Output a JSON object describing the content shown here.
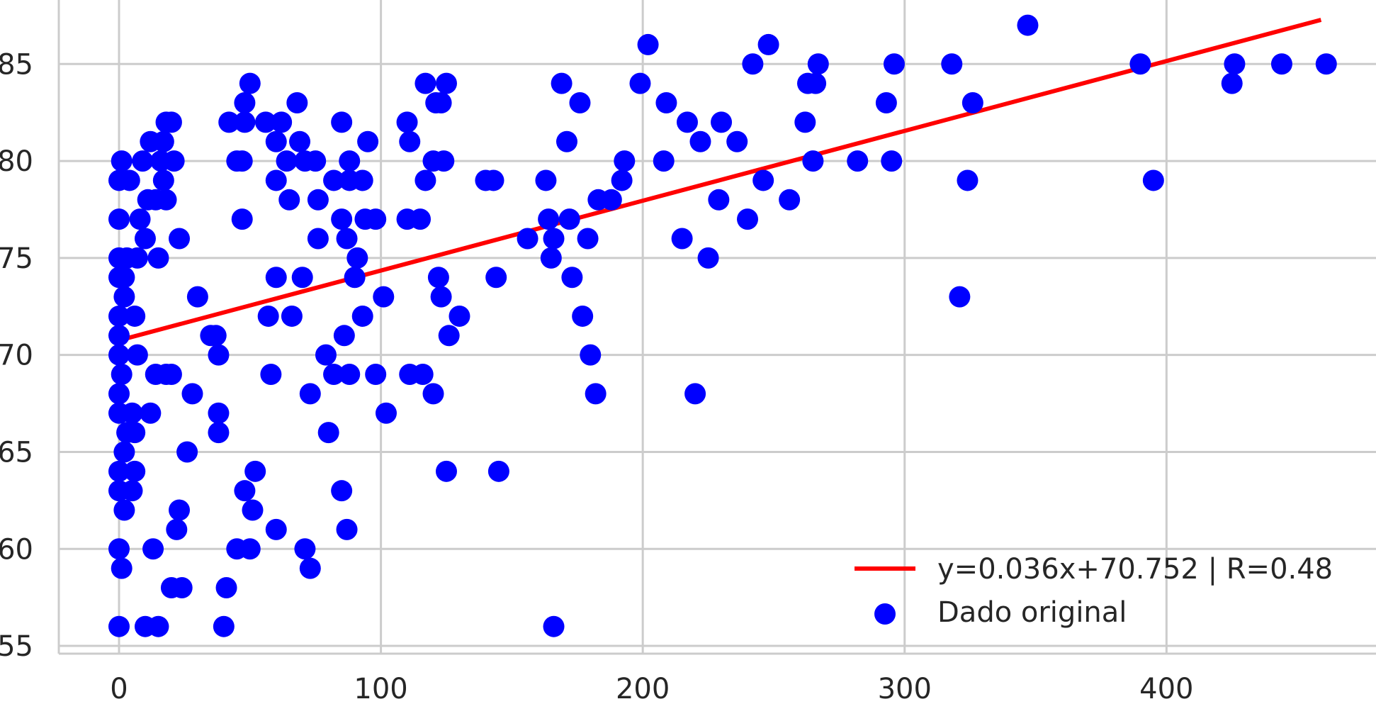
{
  "chart_data": {
    "type": "scatter",
    "xlim": [
      -23,
      480
    ],
    "ylim": [
      54.6,
      88.3
    ],
    "xticks": [
      0,
      100,
      200,
      300,
      400
    ],
    "yticks": [
      55,
      60,
      65,
      70,
      75,
      80,
      85
    ],
    "grid": true,
    "legend_position": "bottom-right",
    "colors": {
      "points": "#0000ff",
      "fit_line": "#ff0000",
      "grid": "#cccccc",
      "axis": "#cccccc",
      "text": "#262626"
    },
    "series": [
      {
        "name": "Dado original",
        "type": "scatter",
        "points": [
          [
            0,
            56
          ],
          [
            0,
            60
          ],
          [
            0,
            63
          ],
          [
            0,
            64
          ],
          [
            0,
            67
          ],
          [
            0,
            68
          ],
          [
            0,
            70
          ],
          [
            0,
            71
          ],
          [
            0,
            72
          ],
          [
            0,
            74
          ],
          [
            0,
            75
          ],
          [
            0,
            77
          ],
          [
            0,
            79
          ],
          [
            1,
            59
          ],
          [
            1,
            69
          ],
          [
            1,
            80
          ],
          [
            2,
            62
          ],
          [
            2,
            65
          ],
          [
            2,
            73
          ],
          [
            2,
            74
          ],
          [
            3,
            66
          ],
          [
            3,
            75
          ],
          [
            4,
            79
          ],
          [
            5,
            63
          ],
          [
            5,
            67
          ],
          [
            6,
            64
          ],
          [
            6,
            66
          ],
          [
            6,
            72
          ],
          [
            7,
            70
          ],
          [
            7,
            75
          ],
          [
            8,
            77
          ],
          [
            9,
            80
          ],
          [
            10,
            56
          ],
          [
            10,
            76
          ],
          [
            11,
            78
          ],
          [
            12,
            67
          ],
          [
            12,
            81
          ],
          [
            13,
            60
          ],
          [
            14,
            69
          ],
          [
            14,
            78
          ],
          [
            15,
            56
          ],
          [
            15,
            75
          ],
          [
            16,
            80
          ],
          [
            17,
            79
          ],
          [
            17,
            81
          ],
          [
            18,
            69
          ],
          [
            18,
            78
          ],
          [
            18,
            82
          ],
          [
            20,
            58
          ],
          [
            20,
            69
          ],
          [
            20,
            82
          ],
          [
            21,
            80
          ],
          [
            22,
            61
          ],
          [
            23,
            62
          ],
          [
            23,
            76
          ],
          [
            24,
            58
          ],
          [
            26,
            65
          ],
          [
            28,
            68
          ],
          [
            30,
            73
          ],
          [
            35,
            71
          ],
          [
            37,
            71
          ],
          [
            38,
            66
          ],
          [
            38,
            67
          ],
          [
            38,
            70
          ],
          [
            40,
            56
          ],
          [
            41,
            58
          ],
          [
            42,
            82
          ],
          [
            45,
            60
          ],
          [
            45,
            80
          ],
          [
            47,
            77
          ],
          [
            47,
            80
          ],
          [
            48,
            63
          ],
          [
            48,
            82
          ],
          [
            48,
            83
          ],
          [
            50,
            60
          ],
          [
            50,
            84
          ],
          [
            51,
            62
          ],
          [
            52,
            64
          ],
          [
            56,
            82
          ],
          [
            57,
            72
          ],
          [
            58,
            69
          ],
          [
            60,
            61
          ],
          [
            60,
            74
          ],
          [
            60,
            79
          ],
          [
            60,
            81
          ],
          [
            62,
            82
          ],
          [
            64,
            80
          ],
          [
            65,
            78
          ],
          [
            66,
            72
          ],
          [
            68,
            83
          ],
          [
            69,
            81
          ],
          [
            70,
            74
          ],
          [
            71,
            60
          ],
          [
            71,
            80
          ],
          [
            73,
            59
          ],
          [
            73,
            68
          ],
          [
            75,
            80
          ],
          [
            76,
            76
          ],
          [
            76,
            78
          ],
          [
            79,
            70
          ],
          [
            80,
            66
          ],
          [
            82,
            69
          ],
          [
            82,
            79
          ],
          [
            85,
            63
          ],
          [
            85,
            77
          ],
          [
            85,
            82
          ],
          [
            86,
            71
          ],
          [
            87,
            61
          ],
          [
            87,
            76
          ],
          [
            88,
            69
          ],
          [
            88,
            79
          ],
          [
            88,
            80
          ],
          [
            90,
            74
          ],
          [
            91,
            75
          ],
          [
            93,
            72
          ],
          [
            93,
            79
          ],
          [
            94,
            77
          ],
          [
            95,
            81
          ],
          [
            98,
            69
          ],
          [
            98,
            77
          ],
          [
            101,
            73
          ],
          [
            102,
            67
          ],
          [
            110,
            77
          ],
          [
            110,
            82
          ],
          [
            111,
            69
          ],
          [
            111,
            81
          ],
          [
            115,
            77
          ],
          [
            116,
            69
          ],
          [
            117,
            79
          ],
          [
            117,
            84
          ],
          [
            120,
            68
          ],
          [
            120,
            80
          ],
          [
            121,
            83
          ],
          [
            122,
            74
          ],
          [
            123,
            73
          ],
          [
            123,
            83
          ],
          [
            124,
            80
          ],
          [
            125,
            64
          ],
          [
            125,
            84
          ],
          [
            126,
            71
          ],
          [
            130,
            72
          ],
          [
            140,
            79
          ],
          [
            143,
            79
          ],
          [
            144,
            74
          ],
          [
            145,
            64
          ],
          [
            156,
            76
          ],
          [
            163,
            79
          ],
          [
            164,
            77
          ],
          [
            165,
            75
          ],
          [
            166,
            56
          ],
          [
            166,
            76
          ],
          [
            169,
            84
          ],
          [
            171,
            81
          ],
          [
            172,
            77
          ],
          [
            173,
            74
          ],
          [
            176,
            83
          ],
          [
            177,
            72
          ],
          [
            179,
            76
          ],
          [
            180,
            70
          ],
          [
            182,
            68
          ],
          [
            183,
            78
          ],
          [
            188,
            78
          ],
          [
            192,
            79
          ],
          [
            193,
            80
          ],
          [
            199,
            84
          ],
          [
            202,
            86
          ],
          [
            208,
            80
          ],
          [
            209,
            83
          ],
          [
            215,
            76
          ],
          [
            217,
            82
          ],
          [
            220,
            68
          ],
          [
            222,
            81
          ],
          [
            225,
            75
          ],
          [
            229,
            78
          ],
          [
            230,
            82
          ],
          [
            236,
            81
          ],
          [
            240,
            77
          ],
          [
            242,
            85
          ],
          [
            246,
            79
          ],
          [
            248,
            86
          ],
          [
            256,
            78
          ],
          [
            262,
            82
          ],
          [
            263,
            84
          ],
          [
            265,
            80
          ],
          [
            266,
            84
          ],
          [
            267,
            85
          ],
          [
            282,
            80
          ],
          [
            293,
            83
          ],
          [
            295,
            80
          ],
          [
            296,
            85
          ],
          [
            318,
            85
          ],
          [
            321,
            73
          ],
          [
            324,
            79
          ],
          [
            326,
            83
          ],
          [
            347,
            87
          ],
          [
            390,
            85
          ],
          [
            395,
            79
          ],
          [
            425,
            84
          ],
          [
            426,
            85
          ],
          [
            444,
            85
          ],
          [
            461,
            85
          ]
        ]
      },
      {
        "name": "y=0.036x+70.752 | R=0.48",
        "type": "line",
        "slope": 0.036,
        "intercept": 70.752,
        "x_range": [
          0,
          459
        ]
      }
    ]
  }
}
